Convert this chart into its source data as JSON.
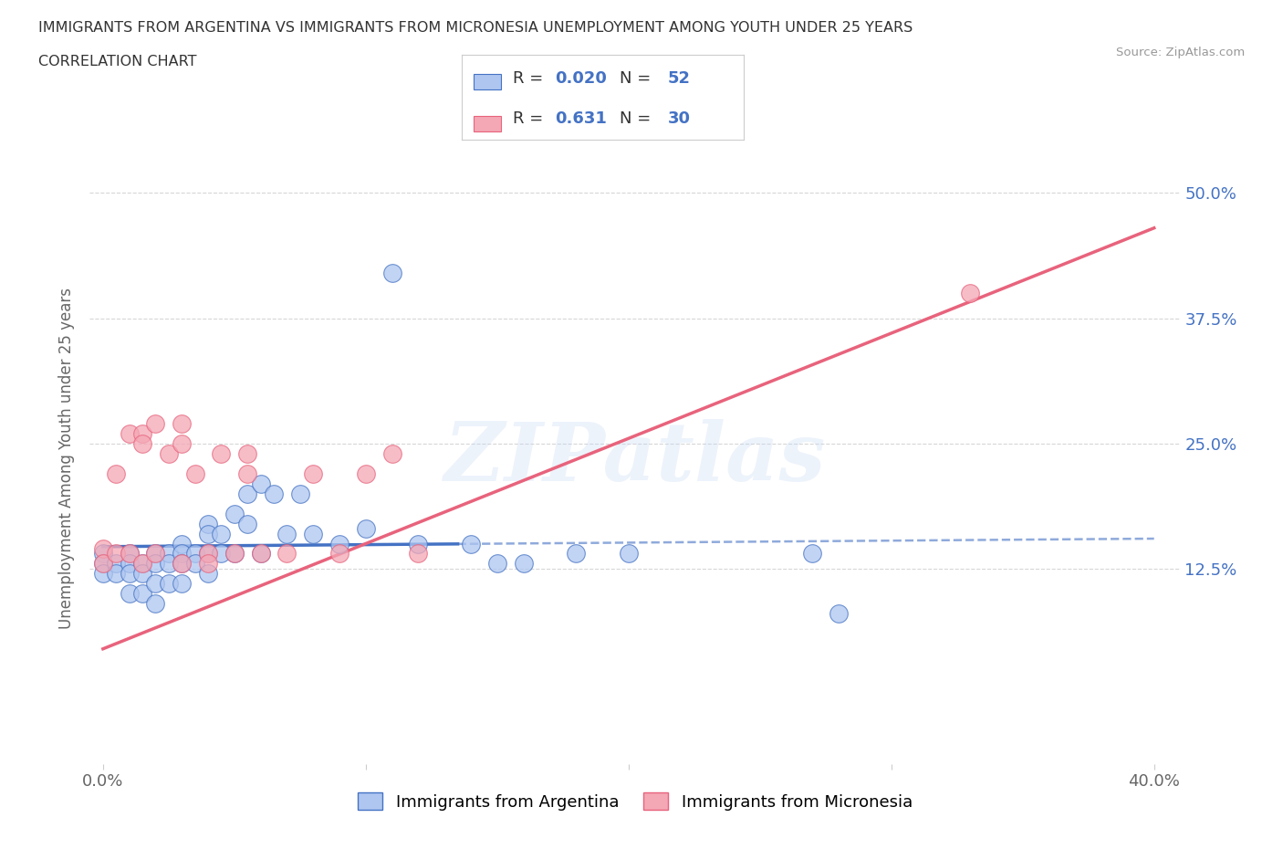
{
  "title_line1": "IMMIGRANTS FROM ARGENTINA VS IMMIGRANTS FROM MICRONESIA UNEMPLOYMENT AMONG YOUTH UNDER 25 YEARS",
  "title_line2": "CORRELATION CHART",
  "source": "Source: ZipAtlas.com",
  "ylabel": "Unemployment Among Youth under 25 years",
  "xlim": [
    -0.005,
    0.41
  ],
  "ylim": [
    -0.07,
    0.54
  ],
  "yticks": [
    0.125,
    0.25,
    0.375,
    0.5
  ],
  "yticklabels": [
    "12.5%",
    "25.0%",
    "37.5%",
    "50.0%"
  ],
  "xtick_positions": [
    0.0,
    0.1,
    0.2,
    0.3,
    0.4
  ],
  "argentina_color": "#aec6f0",
  "micronesia_color": "#f4a7b5",
  "argentina_line_color": "#4472c4",
  "micronesia_line_color": "#e8637c",
  "watermark_text": "ZIPatlas",
  "legend_r_argentina": "0.020",
  "legend_n_argentina": "52",
  "legend_r_micronesia": "0.631",
  "legend_n_micronesia": "30",
  "legend_label_argentina": "Immigrants from Argentina",
  "legend_label_micronesia": "Immigrants from Micronesia",
  "argentina_x": [
    0.0,
    0.0,
    0.0,
    0.005,
    0.005,
    0.01,
    0.01,
    0.01,
    0.01,
    0.015,
    0.015,
    0.015,
    0.02,
    0.02,
    0.02,
    0.02,
    0.025,
    0.025,
    0.025,
    0.03,
    0.03,
    0.03,
    0.03,
    0.035,
    0.035,
    0.04,
    0.04,
    0.04,
    0.04,
    0.045,
    0.045,
    0.05,
    0.05,
    0.055,
    0.055,
    0.06,
    0.06,
    0.065,
    0.07,
    0.075,
    0.08,
    0.09,
    0.1,
    0.11,
    0.12,
    0.14,
    0.15,
    0.16,
    0.18,
    0.2,
    0.27,
    0.28
  ],
  "argentina_y": [
    0.14,
    0.13,
    0.12,
    0.13,
    0.12,
    0.14,
    0.13,
    0.12,
    0.1,
    0.13,
    0.12,
    0.1,
    0.14,
    0.13,
    0.11,
    0.09,
    0.14,
    0.13,
    0.11,
    0.15,
    0.14,
    0.13,
    0.11,
    0.14,
    0.13,
    0.17,
    0.16,
    0.14,
    0.12,
    0.16,
    0.14,
    0.18,
    0.14,
    0.2,
    0.17,
    0.21,
    0.14,
    0.2,
    0.16,
    0.2,
    0.16,
    0.15,
    0.165,
    0.42,
    0.15,
    0.15,
    0.13,
    0.13,
    0.14,
    0.14,
    0.14,
    0.08
  ],
  "micronesia_x": [
    0.0,
    0.0,
    0.005,
    0.005,
    0.01,
    0.01,
    0.015,
    0.015,
    0.015,
    0.02,
    0.02,
    0.025,
    0.03,
    0.03,
    0.03,
    0.035,
    0.04,
    0.04,
    0.045,
    0.05,
    0.055,
    0.055,
    0.06,
    0.07,
    0.08,
    0.09,
    0.1,
    0.11,
    0.12,
    0.33
  ],
  "micronesia_y": [
    0.145,
    0.13,
    0.22,
    0.14,
    0.26,
    0.14,
    0.26,
    0.25,
    0.13,
    0.27,
    0.14,
    0.24,
    0.27,
    0.25,
    0.13,
    0.22,
    0.14,
    0.13,
    0.24,
    0.14,
    0.24,
    0.22,
    0.14,
    0.14,
    0.22,
    0.14,
    0.22,
    0.24,
    0.14,
    0.4
  ],
  "background_color": "#ffffff",
  "grid_color": "#cccccc",
  "tick_color_right": "#4472c4",
  "arg_trend_x0": 0.0,
  "arg_trend_x1": 0.4,
  "arg_trend_y0": 0.147,
  "arg_trend_y1": 0.155,
  "arg_solid_xend": 0.135,
  "mic_trend_x0": 0.0,
  "mic_trend_x1": 0.4,
  "mic_trend_y0": 0.045,
  "mic_trend_y1": 0.465
}
